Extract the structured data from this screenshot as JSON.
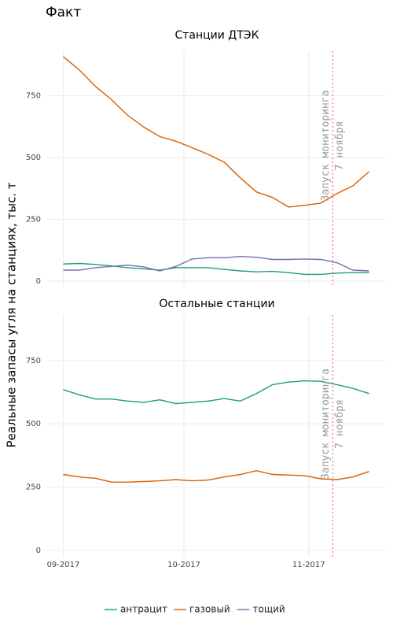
{
  "title": "Факт",
  "y_label": "Реальные запасы угля на станциях, тыс. т",
  "chart_data": [
    {
      "type": "line",
      "title": "Станции ДТЭК",
      "x": [
        "2017-09-01",
        "2017-09-05",
        "2017-09-09",
        "2017-09-13",
        "2017-09-17",
        "2017-09-21",
        "2017-09-25",
        "2017-09-29",
        "2017-10-03",
        "2017-10-07",
        "2017-10-11",
        "2017-10-15",
        "2017-10-19",
        "2017-10-23",
        "2017-10-27",
        "2017-10-31",
        "2017-11-04",
        "2017-11-08",
        "2017-11-12",
        "2017-11-16"
      ],
      "series": [
        {
          "name": "антрацит",
          "color": "#1b9e77",
          "values": [
            70,
            72,
            68,
            62,
            55,
            50,
            45,
            55,
            55,
            55,
            48,
            42,
            38,
            40,
            35,
            28,
            28,
            33,
            35,
            35
          ]
        },
        {
          "name": "газовый",
          "color": "#d95f02",
          "values": [
            908,
            854,
            788,
            734,
            671,
            623,
            585,
            566,
            540,
            513,
            481,
            418,
            361,
            339,
            300,
            307,
            316,
            354,
            386,
            443
          ]
        },
        {
          "name": "тощий",
          "color": "#7570b3",
          "values": [
            45,
            45,
            55,
            60,
            65,
            58,
            42,
            60,
            90,
            95,
            95,
            100,
            97,
            88,
            88,
            90,
            88,
            75,
            45,
            42
          ]
        }
      ],
      "ylim": [
        -25,
        930
      ],
      "yticks": [
        0,
        250,
        500,
        750
      ],
      "annotation": {
        "x": "2017-11-07",
        "lines": [
          "Запуск мониторинга",
          "7 ноября"
        ]
      }
    },
    {
      "type": "line",
      "title": "Остальные станции",
      "x": [
        "2017-09-01",
        "2017-09-05",
        "2017-09-09",
        "2017-09-13",
        "2017-09-17",
        "2017-09-21",
        "2017-09-25",
        "2017-09-29",
        "2017-10-03",
        "2017-10-07",
        "2017-10-11",
        "2017-10-15",
        "2017-10-19",
        "2017-10-23",
        "2017-10-27",
        "2017-10-31",
        "2017-11-04",
        "2017-11-08",
        "2017-11-12",
        "2017-11-16"
      ],
      "series": [
        {
          "name": "антрацит",
          "color": "#1b9e77",
          "values": [
            635,
            615,
            598,
            598,
            590,
            585,
            595,
            580,
            585,
            590,
            600,
            590,
            620,
            655,
            665,
            670,
            668,
            655,
            640,
            620
          ]
        },
        {
          "name": "газовый",
          "color": "#d95f02",
          "values": [
            300,
            290,
            285,
            270,
            270,
            272,
            275,
            280,
            275,
            278,
            290,
            300,
            315,
            300,
            298,
            295,
            283,
            280,
            290,
            312
          ]
        }
      ],
      "ylim": [
        -25,
        930
      ],
      "yticks": [
        0,
        250,
        500,
        750
      ],
      "xlim": [
        "2017-08-28",
        "2017-11-20"
      ],
      "xticks": [
        {
          "value": "2017-09-01",
          "label": "09-2017"
        },
        {
          "value": "2017-10-01",
          "label": "10-2017"
        },
        {
          "value": "2017-11-01",
          "label": "11-2017"
        }
      ],
      "annotation": {
        "x": "2017-11-07",
        "lines": [
          "Запуск мониторинга",
          "7 ноября"
        ]
      }
    }
  ]
}
